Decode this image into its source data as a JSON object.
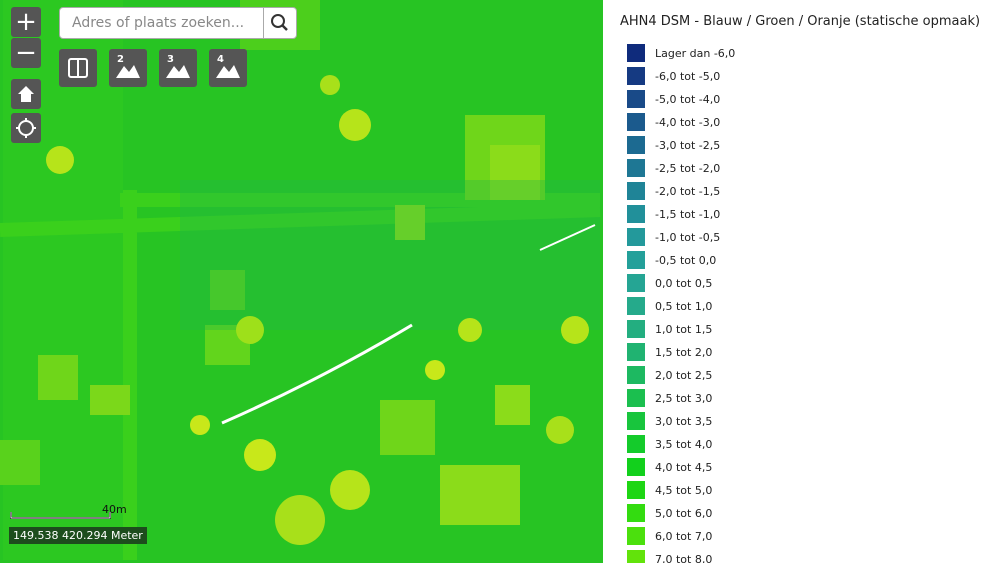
{
  "search": {
    "placeholder": "Adres of plaats zoeken..."
  },
  "controls": {
    "zoom_in": "+",
    "zoom_out": "−",
    "basemaps": [
      "2",
      "3",
      "4"
    ]
  },
  "scale": {
    "label": "40m",
    "coordinates": "149.538 420.294 Meter"
  },
  "legend": {
    "title": "AHN4 DSM - Blauw / Groen / Oranje (statische opmaak)",
    "items": [
      {
        "label": "Lager dan -6,0",
        "color": "#0f2b7c"
      },
      {
        "label": "-6,0 tot -5,0",
        "color": "#153a82"
      },
      {
        "label": "-5,0 tot -4,0",
        "color": "#194a88"
      },
      {
        "label": "-4,0 tot -3,0",
        "color": "#1b5a8d"
      },
      {
        "label": "-3,0 tot -2,5",
        "color": "#1c6a91"
      },
      {
        "label": "-2,5 tot -2,0",
        "color": "#1e7794"
      },
      {
        "label": "-2,0 tot -1,5",
        "color": "#1f8497"
      },
      {
        "label": "-1,5 tot -1,0",
        "color": "#21909a"
      },
      {
        "label": "-1,0 tot -0,5",
        "color": "#23999b"
      },
      {
        "label": "-0,5 tot 0,0",
        "color": "#24a09a"
      },
      {
        "label": "0,0 tot 0,5",
        "color": "#25a594"
      },
      {
        "label": "0,5 tot 1,0",
        "color": "#25aa8b"
      },
      {
        "label": "1,0 tot 1,5",
        "color": "#23ae80"
      },
      {
        "label": "1,5 tot 2,0",
        "color": "#20b371"
      },
      {
        "label": "2,0 tot 2,5",
        "color": "#1db961"
      },
      {
        "label": "2,5 tot 3,0",
        "color": "#1bbf4f"
      },
      {
        "label": "3,0 tot 3,5",
        "color": "#18c53d"
      },
      {
        "label": "3,5 tot 4,0",
        "color": "#14cb2b"
      },
      {
        "label": "4,0 tot 4,5",
        "color": "#12d01c"
      },
      {
        "label": "4,5 tot 5,0",
        "color": "#1ed614"
      },
      {
        "label": "5,0 tot 6,0",
        "color": "#33dc10"
      },
      {
        "label": "6,0 tot 7,0",
        "color": "#4be00d"
      },
      {
        "label": "7,0 tot 8,0",
        "color": "#62e30b"
      }
    ]
  }
}
